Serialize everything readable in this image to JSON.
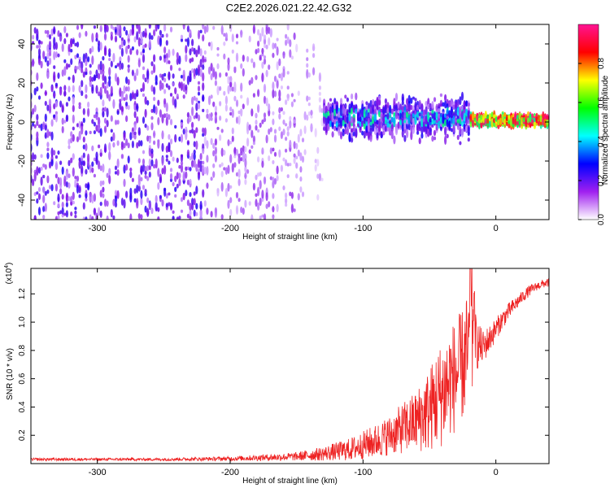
{
  "title": "C2E2.2026.021.22.42.G32",
  "chart_data": [
    {
      "type": "heatmap",
      "xlabel": "Height of straight line (km)",
      "ylabel": "Frequency (Hz)",
      "xlim": [
        -350,
        40
      ],
      "ylim": [
        -50,
        50
      ],
      "xticks": [
        -300,
        -200,
        -100,
        0
      ],
      "yticks": [
        -40,
        -20,
        0,
        20,
        40
      ],
      "colorbar": {
        "label": "Normalized spectral amplitude",
        "range": [
          0,
          1
        ],
        "ticks": [
          "0.0",
          "0.2",
          "0.4",
          "0.6",
          "0.8"
        ],
        "colors": [
          "#ffffff",
          "#a020f0",
          "#0000ff",
          "#00ffff",
          "#00ff00",
          "#ffff00",
          "#ff0000",
          "#ff1493"
        ]
      },
      "description_regions": [
        {
          "x_range": [
            -350,
            -220
          ],
          "freq_spread": 50,
          "amplitude": 0.2
        },
        {
          "x_range": [
            -220,
            -150
          ],
          "freq_spread": 50,
          "amplitude": 0.15
        },
        {
          "x_range": [
            -150,
            -20
          ],
          "freq_spread": 10,
          "amplitude": 0.4
        },
        {
          "x_range": [
            -20,
            40
          ],
          "freq_spread": 2,
          "amplitude": 0.9
        }
      ]
    },
    {
      "type": "line",
      "xlabel": "Height of straight line (km)",
      "ylabel": "SNR (10 * v/v)",
      "y_exponent_label": "(x10",
      "y_exponent": "4",
      "xlim": [
        -350,
        40
      ],
      "ylim": [
        0,
        1.38
      ],
      "xticks": [
        -300,
        -200,
        -100,
        0
      ],
      "yticks": [
        "0.2",
        "0.4",
        "0.6",
        "0.8",
        "1.0",
        "1.2"
      ],
      "series": [
        {
          "color": "#ee2222",
          "x": [
            -350,
            -300,
            -250,
            -200,
            -150,
            -130,
            -110,
            -100,
            -90,
            -80,
            -70,
            -60,
            -50,
            -45,
            -40,
            -35,
            -30,
            -25,
            -20,
            -18,
            -15,
            -10,
            -5,
            0,
            5,
            10,
            15,
            20,
            25,
            30,
            35,
            40
          ],
          "y": [
            0.03,
            0.03,
            0.03,
            0.035,
            0.05,
            0.07,
            0.1,
            0.13,
            0.16,
            0.2,
            0.25,
            0.3,
            0.38,
            0.45,
            0.5,
            0.58,
            0.62,
            0.7,
            0.8,
            1.38,
            0.85,
            0.82,
            0.88,
            0.95,
            1.02,
            1.08,
            1.13,
            1.18,
            1.22,
            1.25,
            1.27,
            1.28
          ],
          "spread": [
            0.01,
            0.01,
            0.01,
            0.015,
            0.03,
            0.05,
            0.08,
            0.1,
            0.12,
            0.14,
            0.18,
            0.22,
            0.3,
            0.35,
            0.38,
            0.4,
            0.4,
            0.4,
            0.45,
            0.2,
            0.2,
            0.12,
            0.1,
            0.08,
            0.07,
            0.06,
            0.05,
            0.04,
            0.04,
            0.03,
            0.03,
            0.03
          ]
        }
      ]
    }
  ]
}
